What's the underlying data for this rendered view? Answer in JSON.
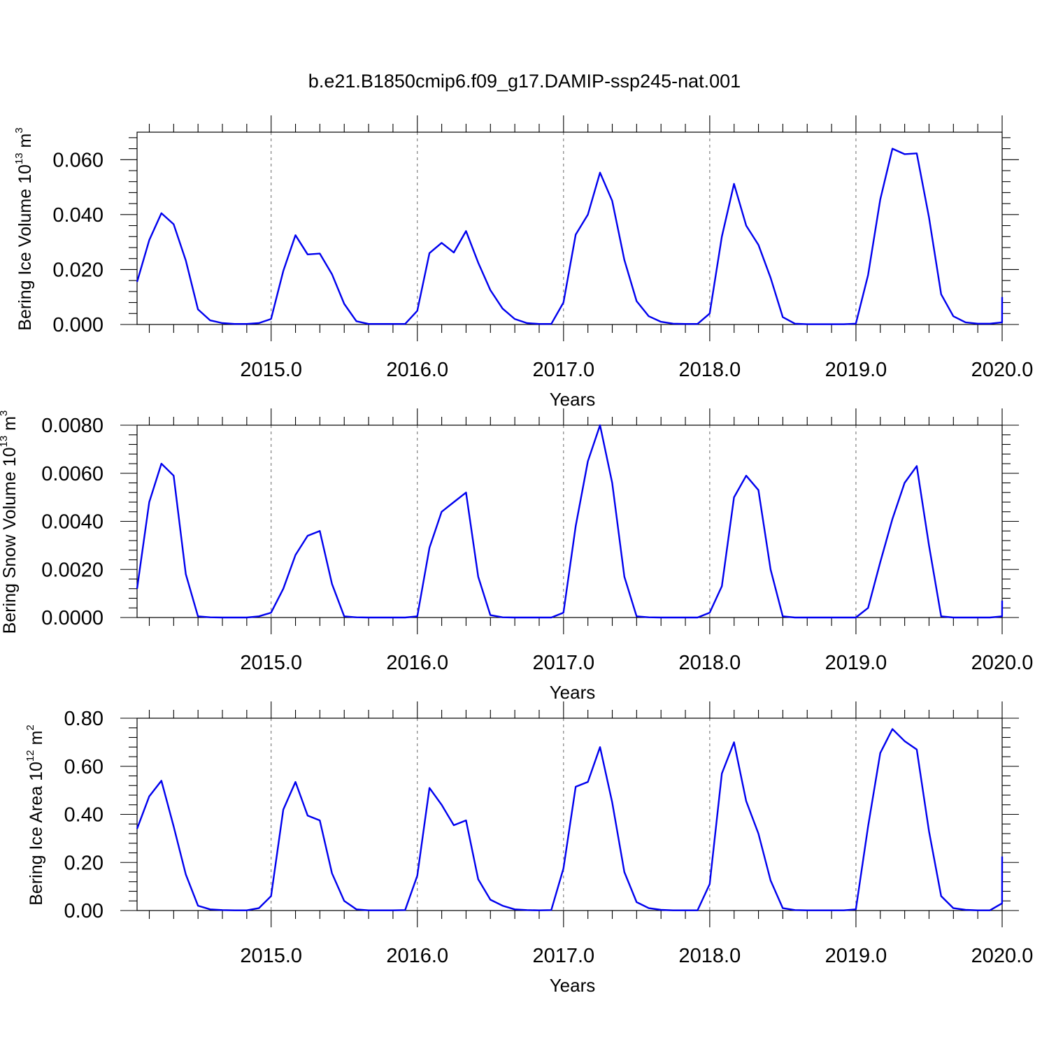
{
  "title": "b.e21.B1850cmip6.f09_g17.DAMIP-ssp245-nat.001",
  "colors": {
    "series": "#0000ee",
    "axis": "#000000"
  },
  "chart_data": [
    {
      "type": "line",
      "ylabel": {
        "text": "Bering Ice Volume 10",
        "sup": "13",
        "unit": " m",
        "unit_sup": "3"
      },
      "xlabel": "Years",
      "xlim": [
        2014.083,
        2020.0
      ],
      "ylim": [
        0,
        0.07
      ],
      "x_ticks": [
        "2015.0",
        "2016.0",
        "2017.0",
        "2018.0",
        "2019.0",
        "2020.0"
      ],
      "y_ticks": [
        "0.000",
        "0.020",
        "0.040",
        "0.060"
      ],
      "y_tick_values": [
        0,
        0.02,
        0.04,
        0.06
      ],
      "grid": "vertical dashed at major x ticks",
      "series": [
        {
          "x_start": 2014.083,
          "step": 0.08333,
          "values": [
            0.0155,
            0.0307,
            0.0405,
            0.0365,
            0.0233,
            0.0055,
            0.0015,
            0.0005,
            0.0002,
            0.0002,
            0.0005,
            0.002,
            0.0195,
            0.0325,
            0.0255,
            0.0258,
            0.0183,
            0.0075,
            0.0012,
            0.0002,
            0.0002,
            0.0002,
            0.0002,
            0.005,
            0.026,
            0.0297,
            0.0262,
            0.034,
            0.0225,
            0.0125,
            0.0058,
            0.002,
            0.0005,
            0.0002,
            0.0002,
            0.008,
            0.0327,
            0.04,
            0.0553,
            0.045,
            0.0235,
            0.0085,
            0.003,
            0.001,
            0.0003,
            0.0002,
            0.0002,
            0.004,
            0.032,
            0.0512,
            0.036,
            0.029,
            0.017,
            0.0027,
            0.0003,
            0.0001,
            0.0001,
            0.0001,
            0.0001,
            0.0003,
            0.018,
            0.0455,
            0.064,
            0.062,
            0.0623,
            0.039,
            0.011,
            0.003,
            0.0008,
            0.0003,
            0.0003,
            0.0008,
            0.01
          ]
        }
      ]
    },
    {
      "type": "line",
      "ylabel": {
        "text": "Bering Snow Volume 10",
        "sup": "13",
        "unit": " m",
        "unit_sup": "3"
      },
      "xlabel": "Years",
      "xlim": [
        2014.083,
        2020.0
      ],
      "ylim": [
        0,
        0.008
      ],
      "x_ticks": [
        "2015.0",
        "2016.0",
        "2017.0",
        "2018.0",
        "2019.0",
        "2020.0"
      ],
      "y_ticks": [
        "0.0000",
        "0.0020",
        "0.0040",
        "0.0060",
        "0.0080"
      ],
      "y_tick_values": [
        0,
        0.002,
        0.004,
        0.006,
        0.008
      ],
      "grid": "vertical dashed at major x ticks",
      "series": [
        {
          "x_start": 2014.083,
          "step": 0.08333,
          "values": [
            0.0012,
            0.0048,
            0.0064,
            0.0059,
            0.0018,
            5e-05,
            1e-05,
            0.0,
            0.0,
            0.0,
            5e-05,
            0.0002,
            0.0012,
            0.0026,
            0.0034,
            0.0036,
            0.0014,
            5e-05,
            1e-05,
            0.0,
            0.0,
            0.0,
            0.0,
            5e-05,
            0.0029,
            0.0044,
            0.0048,
            0.0052,
            0.0017,
            0.0001,
            1e-05,
            0.0,
            0.0,
            0.0,
            0.0,
            0.0002,
            0.0038,
            0.0065,
            0.008,
            0.0056,
            0.0017,
            5e-05,
            1e-05,
            0.0,
            0.0,
            0.0,
            0.0,
            0.0002,
            0.0013,
            0.005,
            0.0059,
            0.0053,
            0.002,
            5e-05,
            0.0,
            0.0,
            0.0,
            0.0,
            0.0,
            0.0,
            0.0004,
            0.0023,
            0.0041,
            0.0056,
            0.0063,
            0.003,
            5e-05,
            0.0,
            0.0,
            0.0,
            0.0,
            5e-05,
            0.0007
          ]
        }
      ]
    },
    {
      "type": "line",
      "ylabel": {
        "text": "Bering Ice Area 10",
        "sup": "12",
        "unit": " m",
        "unit_sup": "2"
      },
      "xlabel": "Years",
      "xlim": [
        2014.083,
        2020.0
      ],
      "ylim": [
        0,
        0.8
      ],
      "x_ticks": [
        "2015.0",
        "2016.0",
        "2017.0",
        "2018.0",
        "2019.0",
        "2020.0"
      ],
      "y_ticks": [
        "0.00",
        "0.20",
        "0.40",
        "0.60",
        "0.80"
      ],
      "y_tick_values": [
        0,
        0.2,
        0.4,
        0.6,
        0.8
      ],
      "grid": "vertical dashed at major x ticks",
      "series": [
        {
          "x_start": 2014.083,
          "step": 0.08333,
          "values": [
            0.34,
            0.475,
            0.54,
            0.35,
            0.15,
            0.02,
            0.005,
            0.002,
            0.001,
            0.001,
            0.01,
            0.06,
            0.42,
            0.535,
            0.395,
            0.375,
            0.155,
            0.04,
            0.005,
            0.001,
            0.001,
            0.001,
            0.002,
            0.145,
            0.51,
            0.44,
            0.355,
            0.375,
            0.13,
            0.045,
            0.02,
            0.005,
            0.002,
            0.001,
            0.002,
            0.175,
            0.515,
            0.535,
            0.68,
            0.45,
            0.16,
            0.035,
            0.01,
            0.003,
            0.001,
            0.001,
            0.001,
            0.11,
            0.57,
            0.7,
            0.455,
            0.32,
            0.125,
            0.01,
            0.002,
            0.001,
            0.001,
            0.001,
            0.001,
            0.005,
            0.35,
            0.655,
            0.755,
            0.705,
            0.67,
            0.33,
            0.06,
            0.01,
            0.003,
            0.001,
            0.001,
            0.03,
            0.225
          ]
        }
      ]
    }
  ]
}
